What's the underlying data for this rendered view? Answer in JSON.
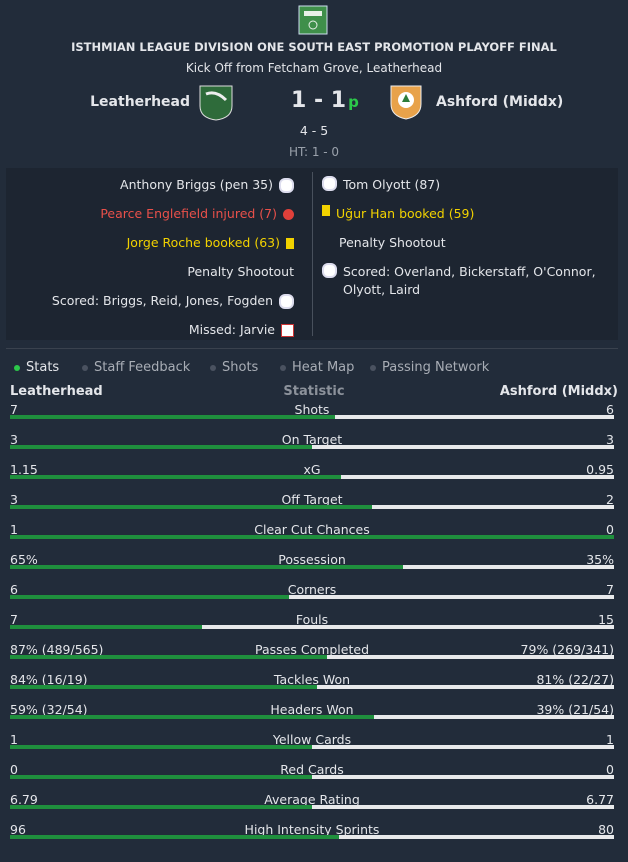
{
  "header": {
    "competition": "ISTHMIAN LEAGUE DIVISION ONE SOUTH EAST PROMOTION PLAYOFF FINAL",
    "venue": "Kick Off from Fetcham Grove, Leatherhead",
    "home_team": "Leatherhead",
    "away_team": "Ashford (Middx)",
    "score": "1 - 1",
    "score_suffix": "p",
    "penalties": "4 - 5",
    "half_time": "HT: 1 - 0"
  },
  "events": {
    "home": [
      {
        "text": "Anthony Briggs (pen 35)",
        "icon": "ball"
      },
      {
        "text": "Pearce Englefield injured (7)",
        "icon": "injury"
      },
      {
        "text": "Jorge Roche booked (63)",
        "icon": "yellow"
      },
      {
        "text": "Penalty Shootout",
        "icon": null
      },
      {
        "text": "Scored: Briggs, Reid, Jones, Fogden",
        "icon": "ball"
      },
      {
        "text": "Missed: Jarvie",
        "icon": "miss"
      }
    ],
    "away": [
      {
        "text": "Tom Olyott (87)",
        "icon": "ball"
      },
      {
        "text": "Uğur Han booked (59)",
        "icon": "yellow"
      },
      {
        "text": "Penalty Shootout",
        "icon": null
      },
      {
        "text": "Scored: Overland, Bickerstaff, O'Connor, Olyott, Laird",
        "icon": "ball"
      }
    ]
  },
  "tabs": [
    "Stats",
    "Staff Feedback",
    "Shots",
    "Heat Map",
    "Passing Network"
  ],
  "stats_header": "Statistic",
  "stats": [
    {
      "label": "Shots",
      "home": "7",
      "away": "6"
    },
    {
      "label": "On Target",
      "home": "3",
      "away": "3"
    },
    {
      "label": "xG",
      "home": "1.15",
      "away": "0.95"
    },
    {
      "label": "Off Target",
      "home": "3",
      "away": "2"
    },
    {
      "label": "Clear Cut Chances",
      "home": "1",
      "away": "0"
    },
    {
      "label": "Possession",
      "home": "65%",
      "away": "35%"
    },
    {
      "label": "Corners",
      "home": "6",
      "away": "7"
    },
    {
      "label": "Fouls",
      "home": "7",
      "away": "15"
    },
    {
      "label": "Passes Completed",
      "home": "87% (489/565)",
      "away": "79% (269/341)"
    },
    {
      "label": "Tackles Won",
      "home": "84% (16/19)",
      "away": "81% (22/27)"
    },
    {
      "label": "Headers Won",
      "home": "59% (32/54)",
      "away": "39% (21/54)"
    },
    {
      "label": "Yellow Cards",
      "home": "1",
      "away": "1"
    },
    {
      "label": "Red Cards",
      "home": "0",
      "away": "0"
    },
    {
      "label": "Average Rating",
      "home": "6.79",
      "away": "6.77"
    },
    {
      "label": "High Intensity Sprints",
      "home": "96",
      "away": "80"
    }
  ]
}
